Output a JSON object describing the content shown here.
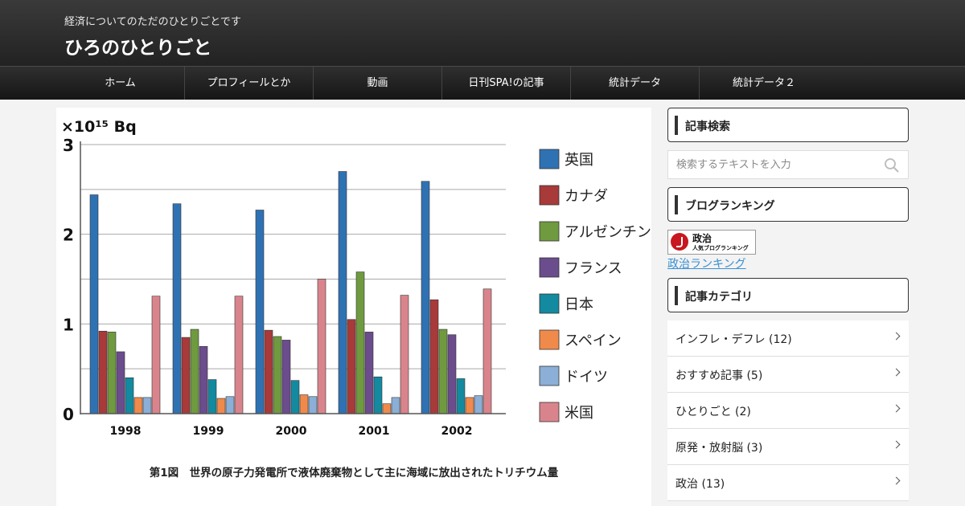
{
  "header": {
    "tagline": "経済についてのただのひとりごとです",
    "site_title": "ひろのひとりごと"
  },
  "nav": {
    "items": [
      {
        "label": "ホーム"
      },
      {
        "label": "プロフィールとか"
      },
      {
        "label": "動画"
      },
      {
        "label": "日刊SPA!の記事"
      },
      {
        "label": "統計データ"
      },
      {
        "label": "統計データ２"
      }
    ]
  },
  "sidebar": {
    "search_title": "記事検索",
    "search_placeholder": "検索するテキストを入力",
    "ranking_title": "ブログランキング",
    "ranking_banner_line1": "政治",
    "ranking_banner_line2": "人気ブログランキング",
    "ranking_link": "政治ランキング",
    "category_title": "記事カテゴリ",
    "categories": [
      {
        "label": "インフレ・デフレ (12)"
      },
      {
        "label": "おすすめ記事 (5)"
      },
      {
        "label": "ひとりごと (2)"
      },
      {
        "label": "原発・放射脳 (3)"
      },
      {
        "label": "政治 (13)"
      }
    ]
  },
  "colors": {
    "uk": "#2f72b3",
    "canada": "#a83a3a",
    "argentina": "#6f9a3f",
    "france": "#6b4c8c",
    "japan": "#138aa0",
    "spain": "#f08a4b",
    "germany": "#8bafd6",
    "usa": "#d9848c"
  },
  "chart_data": {
    "type": "bar",
    "unit_label": "×10¹⁵ Bq",
    "caption": "第1図　世界の原子力発電所で液体廃棄物として主に海域に放出されたトリチウム量",
    "categories": [
      "1998",
      "1999",
      "2000",
      "2001",
      "2002"
    ],
    "ylim": [
      0,
      3
    ],
    "yticks": [
      0,
      1,
      2,
      3
    ],
    "legend_position": "right",
    "grid": true,
    "series": [
      {
        "name": "英国",
        "color_key": "uk",
        "values": [
          2.44,
          2.34,
          2.27,
          2.7,
          2.59
        ]
      },
      {
        "name": "カナダ",
        "color_key": "canada",
        "values": [
          0.92,
          0.85,
          0.93,
          1.05,
          1.27
        ]
      },
      {
        "name": "アルゼンチン",
        "color_key": "argentina",
        "values": [
          0.91,
          0.94,
          0.86,
          1.58,
          0.94
        ]
      },
      {
        "name": "フランス",
        "color_key": "france",
        "values": [
          0.69,
          0.75,
          0.82,
          0.91,
          0.88
        ]
      },
      {
        "name": "日本",
        "color_key": "japan",
        "values": [
          0.4,
          0.38,
          0.37,
          0.41,
          0.39
        ]
      },
      {
        "name": "スペイン",
        "color_key": "spain",
        "values": [
          0.18,
          0.17,
          0.21,
          0.11,
          0.18
        ]
      },
      {
        "name": "ドイツ",
        "color_key": "germany",
        "values": [
          0.18,
          0.19,
          0.19,
          0.18,
          0.2
        ]
      },
      {
        "name": "米国",
        "color_key": "usa",
        "values": [
          1.31,
          1.31,
          1.5,
          1.32,
          1.39
        ]
      }
    ]
  }
}
